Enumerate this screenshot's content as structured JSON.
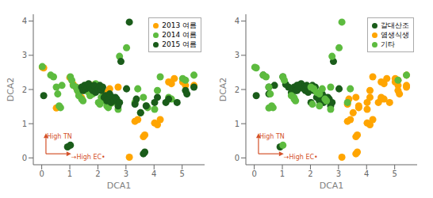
{
  "chart_data": [
    {
      "type": "scatter",
      "x_label": "DCA1",
      "y_label": "DCA2",
      "xlim": [
        -0.3,
        5.8
      ],
      "ylim": [
        -0.2,
        4.2
      ],
      "xticks": [
        0,
        1,
        2,
        3,
        4,
        5
      ],
      "yticks": [
        0,
        1,
        2,
        3,
        4
      ],
      "grid": false,
      "legend": "upper right",
      "arrows": [
        {
          "from": [
            0.15,
            0.12
          ],
          "to": [
            0.15,
            0.72
          ],
          "color": "#D4522A"
        },
        {
          "from": [
            0.15,
            0.12
          ],
          "to": [
            1.05,
            0.12
          ],
          "color": "#D4522A"
        }
      ],
      "annotations": [
        {
          "text": "High TN",
          "x": 0.18,
          "y": 0.7,
          "color": "#D4522A"
        },
        {
          "text": "→High EC•",
          "x": 1.05,
          "y": 0.09,
          "color": "#D4522A"
        }
      ],
      "series": [
        {
          "name": "2013 여름",
          "color": "#FFA500",
          "points": [
            [
              0.02,
              2.65
            ],
            [
              0.07,
              2.63
            ],
            [
              0.52,
              1.46
            ],
            [
              1.0,
              2.35
            ],
            [
              1.12,
              2.15
            ],
            [
              1.22,
              2.07
            ],
            [
              1.32,
              1.91
            ],
            [
              1.42,
              1.76
            ],
            [
              1.52,
              2.02
            ],
            [
              1.62,
              1.97
            ],
            [
              1.72,
              2.02
            ],
            [
              1.77,
              1.87
            ],
            [
              1.82,
              2.12
            ],
            [
              1.87,
              1.97
            ],
            [
              2.02,
              2.07
            ],
            [
              2.12,
              2.02
            ],
            [
              2.22,
              1.92
            ],
            [
              2.32,
              1.87
            ],
            [
              2.42,
              2.02
            ],
            [
              2.52,
              1.72
            ],
            [
              2.57,
              1.67
            ],
            [
              2.72,
              2.07
            ],
            [
              3.12,
              0.02
            ],
            [
              3.32,
              1.07
            ],
            [
              3.42,
              1.12
            ],
            [
              3.62,
              0.62
            ],
            [
              3.67,
              0.67
            ],
            [
              4.02,
              1.02
            ],
            [
              4.12,
              0.97
            ],
            [
              4.22,
              1.12
            ],
            [
              4.52,
              2.22
            ],
            [
              4.62,
              2.17
            ],
            [
              4.72,
              2.32
            ],
            [
              5.02,
              2.22
            ],
            [
              5.12,
              2.12
            ],
            [
              5.42,
              2.12
            ]
          ]
        },
        {
          "name": "2014 여름",
          "color": "#5DBB3F",
          "points": [
            [
              0.02,
              2.67
            ],
            [
              0.32,
              2.42
            ],
            [
              0.42,
              2.37
            ],
            [
              0.52,
              2.07
            ],
            [
              0.57,
              1.87
            ],
            [
              0.62,
              1.52
            ],
            [
              0.67,
              1.47
            ],
            [
              0.72,
              2.12
            ],
            [
              1.02,
              2.37
            ],
            [
              1.07,
              2.27
            ],
            [
              1.12,
              2.12
            ],
            [
              1.22,
              2.07
            ],
            [
              1.27,
              1.97
            ],
            [
              1.32,
              1.82
            ],
            [
              1.42,
              1.72
            ],
            [
              1.47,
              1.67
            ],
            [
              1.52,
              1.97
            ],
            [
              1.57,
              2.12
            ],
            [
              1.62,
              2.02
            ],
            [
              1.67,
              1.92
            ],
            [
              1.72,
              1.82
            ],
            [
              1.77,
              2.07
            ],
            [
              1.82,
              1.87
            ],
            [
              1.87,
              2.12
            ],
            [
              1.92,
              2.17
            ],
            [
              2.02,
              1.62
            ],
            [
              2.07,
              1.57
            ],
            [
              2.12,
              1.77
            ],
            [
              2.22,
              1.67
            ],
            [
              2.32,
              1.52
            ],
            [
              2.37,
              1.47
            ],
            [
              2.42,
              1.57
            ],
            [
              2.52,
              1.62
            ],
            [
              2.72,
              1.42
            ],
            [
              2.77,
              2.97
            ],
            [
              3.02,
              3.22
            ],
            [
              3.32,
              1.62
            ],
            [
              3.42,
              2.02
            ],
            [
              3.52,
              1.32
            ],
            [
              3.62,
              1.77
            ],
            [
              3.72,
              1.52
            ],
            [
              3.77,
              1.47
            ],
            [
              4.02,
              1.42
            ],
            [
              4.12,
              1.97
            ],
            [
              4.22,
              2.37
            ],
            [
              4.52,
              1.77
            ],
            [
              4.62,
              1.72
            ],
            [
              5.02,
              2.32
            ],
            [
              5.12,
              2.27
            ],
            [
              5.42,
              2.42
            ]
          ]
        },
        {
          "name": "2015 여름",
          "color": "#1A5C1A",
          "points": [
            [
              0.07,
              1.82
            ],
            [
              0.92,
              0.32
            ],
            [
              1.02,
              0.37
            ],
            [
              1.42,
              2.07
            ],
            [
              1.47,
              1.97
            ],
            [
              1.52,
              2.12
            ],
            [
              1.57,
              2.02
            ],
            [
              1.62,
              2.07
            ],
            [
              1.67,
              2.17
            ],
            [
              1.72,
              2.07
            ],
            [
              1.77,
              2.02
            ],
            [
              1.82,
              1.97
            ],
            [
              1.87,
              2.12
            ],
            [
              1.92,
              1.92
            ],
            [
              2.02,
              2.02
            ],
            [
              2.07,
              2.12
            ],
            [
              2.12,
              1.97
            ],
            [
              2.17,
              2.07
            ],
            [
              2.22,
              1.77
            ],
            [
              2.27,
              1.82
            ],
            [
              2.32,
              1.67
            ],
            [
              2.37,
              1.72
            ],
            [
              2.42,
              1.87
            ],
            [
              2.47,
              1.62
            ],
            [
              2.52,
              1.77
            ],
            [
              2.57,
              1.67
            ],
            [
              2.62,
              1.77
            ],
            [
              2.67,
              1.72
            ],
            [
              2.72,
              1.52
            ],
            [
              2.77,
              1.62
            ],
            [
              2.82,
              2.82
            ],
            [
              3.02,
              2.02
            ],
            [
              3.12,
              3.97
            ],
            [
              3.32,
              1.57
            ],
            [
              3.37,
              1.72
            ],
            [
              3.52,
              1.32
            ],
            [
              3.62,
              0.12
            ],
            [
              3.67,
              0.17
            ],
            [
              3.72,
              1.52
            ],
            [
              4.02,
              1.62
            ],
            [
              4.12,
              1.77
            ],
            [
              4.42,
              1.62
            ],
            [
              4.52,
              1.72
            ],
            [
              4.82,
              1.62
            ],
            [
              5.12,
              1.97
            ],
            [
              5.17,
              1.87
            ],
            [
              5.42,
              2.07
            ]
          ]
        }
      ]
    },
    {
      "type": "scatter",
      "x_label": "DCA1",
      "y_label": "DCA2",
      "xlim": [
        -0.3,
        5.8
      ],
      "ylim": [
        -0.2,
        4.2
      ],
      "xticks": [
        0,
        1,
        2,
        3,
        4,
        5
      ],
      "yticks": [
        0,
        1,
        2,
        3,
        4
      ],
      "grid": false,
      "legend": "upper right",
      "arrows": [
        {
          "from": [
            0.15,
            0.12
          ],
          "to": [
            0.15,
            0.72
          ],
          "color": "#D4522A"
        },
        {
          "from": [
            0.15,
            0.12
          ],
          "to": [
            1.05,
            0.12
          ],
          "color": "#D4522A"
        }
      ],
      "annotations": [
        {
          "text": "High TN",
          "x": 0.18,
          "y": 0.7,
          "color": "#D4522A"
        },
        {
          "text": "→High EC•",
          "x": 1.05,
          "y": 0.09,
          "color": "#D4522A"
        }
      ],
      "series": [
        {
          "name": "갈대산조",
          "color": "#1A5C1A",
          "points": [
            [
              1.42,
              2.07
            ],
            [
              1.47,
              1.97
            ],
            [
              1.52,
              2.12
            ],
            [
              1.57,
              2.02
            ],
            [
              1.62,
              2.07
            ],
            [
              1.67,
              2.17
            ],
            [
              1.72,
              2.07
            ],
            [
              1.77,
              2.02
            ],
            [
              1.82,
              1.97
            ],
            [
              1.87,
              2.12
            ],
            [
              1.92,
              1.92
            ],
            [
              2.02,
              2.02
            ],
            [
              2.07,
              2.12
            ],
            [
              2.12,
              1.97
            ],
            [
              2.17,
              2.07
            ],
            [
              2.22,
              1.77
            ],
            [
              2.27,
              1.82
            ],
            [
              2.32,
              1.67
            ],
            [
              2.37,
              1.72
            ],
            [
              2.42,
              1.87
            ],
            [
              2.47,
              1.62
            ],
            [
              2.52,
              1.77
            ],
            [
              1.32,
              1.91
            ],
            [
              1.22,
              2.07
            ],
            [
              1.12,
              2.15
            ],
            [
              2.57,
              1.67
            ],
            [
              2.62,
              1.77
            ],
            [
              0.52,
              2.07
            ],
            [
              1.02,
              2.37
            ],
            [
              0.72,
              2.12
            ],
            [
              0.32,
              2.42
            ],
            [
              0.52,
              1.87
            ],
            [
              1.52,
              1.97
            ],
            [
              1.57,
              2.12
            ],
            [
              2.02,
              1.62
            ],
            [
              2.67,
              1.72
            ],
            [
              2.72,
              1.52
            ],
            [
              2.82,
              2.82
            ],
            [
              3.02,
              2.02
            ],
            [
              0.07,
              1.82
            ],
            [
              0.92,
              0.32
            ],
            [
              2.77,
              1.62
            ]
          ]
        },
        {
          "name": "염생식생",
          "color": "#FFA500",
          "points": [
            [
              3.32,
              1.07
            ],
            [
              3.42,
              1.12
            ],
            [
              3.62,
              0.62
            ],
            [
              3.67,
              0.67
            ],
            [
              4.02,
              1.02
            ],
            [
              4.12,
              0.97
            ],
            [
              4.22,
              1.12
            ],
            [
              3.32,
              1.57
            ],
            [
              3.37,
              1.72
            ],
            [
              3.52,
              1.32
            ],
            [
              3.62,
              0.12
            ],
            [
              3.67,
              0.17
            ],
            [
              3.72,
              1.52
            ],
            [
              4.02,
              1.62
            ],
            [
              4.12,
              1.77
            ],
            [
              4.42,
              1.62
            ],
            [
              4.52,
              1.72
            ],
            [
              4.82,
              1.62
            ],
            [
              4.52,
              2.22
            ],
            [
              4.62,
              2.17
            ],
            [
              4.72,
              2.32
            ],
            [
              5.02,
              2.22
            ],
            [
              5.12,
              2.12
            ],
            [
              5.42,
              2.12
            ],
            [
              4.52,
              1.77
            ],
            [
              4.62,
              1.72
            ],
            [
              5.12,
              1.97
            ],
            [
              5.17,
              1.87
            ],
            [
              5.42,
              2.07
            ],
            [
              3.12,
              0.02
            ],
            [
              3.62,
              1.77
            ],
            [
              3.72,
              1.47
            ],
            [
              4.02,
              1.42
            ],
            [
              4.12,
              1.97
            ],
            [
              4.22,
              2.37
            ],
            [
              5.02,
              2.32
            ],
            [
              5.12,
              2.27
            ],
            [
              5.42,
              2.42
            ]
          ]
        },
        {
          "name": "기타",
          "color": "#5DBB3F",
          "points": [
            [
              0.02,
              2.65
            ],
            [
              0.07,
              2.63
            ],
            [
              0.32,
              2.42
            ],
            [
              0.42,
              2.37
            ],
            [
              0.52,
              2.07
            ],
            [
              0.57,
              1.87
            ],
            [
              0.62,
              1.52
            ],
            [
              0.67,
              1.47
            ],
            [
              1.02,
              2.37
            ],
            [
              1.07,
              2.27
            ],
            [
              1.42,
              1.76
            ],
            [
              0.52,
              1.46
            ],
            [
              2.02,
              2.07
            ],
            [
              2.12,
              2.02
            ],
            [
              2.22,
              1.92
            ],
            [
              2.32,
              1.87
            ],
            [
              2.42,
              2.02
            ],
            [
              2.52,
              1.72
            ],
            [
              2.57,
              1.67
            ],
            [
              2.72,
              2.07
            ],
            [
              2.72,
              1.42
            ],
            [
              2.77,
              2.97
            ],
            [
              3.02,
              3.22
            ],
            [
              3.32,
              1.62
            ],
            [
              3.42,
              2.02
            ],
            [
              1.32,
              1.82
            ],
            [
              1.42,
              1.72
            ],
            [
              1.47,
              1.67
            ],
            [
              2.07,
              1.57
            ],
            [
              2.32,
              1.52
            ],
            [
              3.12,
              3.97
            ],
            [
              1.02,
              0.37
            ],
            [
              5.12,
              2.27
            ],
            [
              5.42,
              2.42
            ]
          ]
        }
      ]
    }
  ]
}
